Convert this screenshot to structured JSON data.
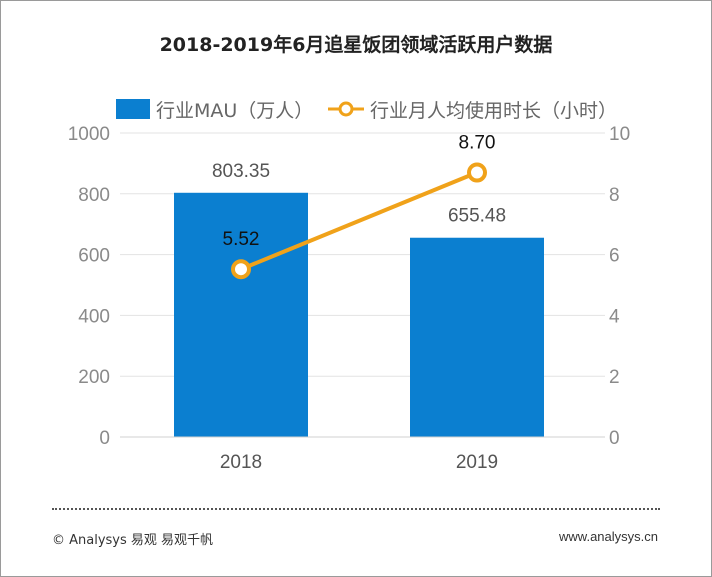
{
  "chart_data": {
    "type": "bar+line",
    "title": "2018-2019年6月追星饭团领域活跃用户数据",
    "categories": [
      "2018",
      "2019"
    ],
    "series": [
      {
        "name": "行业MAU（万人）",
        "type": "bar",
        "axis": "left",
        "values": [
          803.35,
          655.48
        ],
        "labels": [
          "803.35",
          "655.48"
        ],
        "color": "#0b7fd0"
      },
      {
        "name": "行业月人均使用时长（小时）",
        "type": "line",
        "axis": "right",
        "values": [
          5.52,
          8.7
        ],
        "labels": [
          "5.52",
          "8.70"
        ],
        "color": "#f0a21a"
      }
    ],
    "y_left": {
      "min": 0,
      "max": 1000,
      "ticks": [
        "0",
        "200",
        "400",
        "600",
        "800",
        "1000"
      ]
    },
    "y_right": {
      "min": 0,
      "max": 10,
      "ticks": [
        "0",
        "2",
        "4",
        "6",
        "8",
        "10"
      ]
    },
    "grid": true,
    "legend_position": "top"
  },
  "footer": {
    "copyright": "© Analysys 易观 易观千帆",
    "website": "www.analysys.cn"
  }
}
